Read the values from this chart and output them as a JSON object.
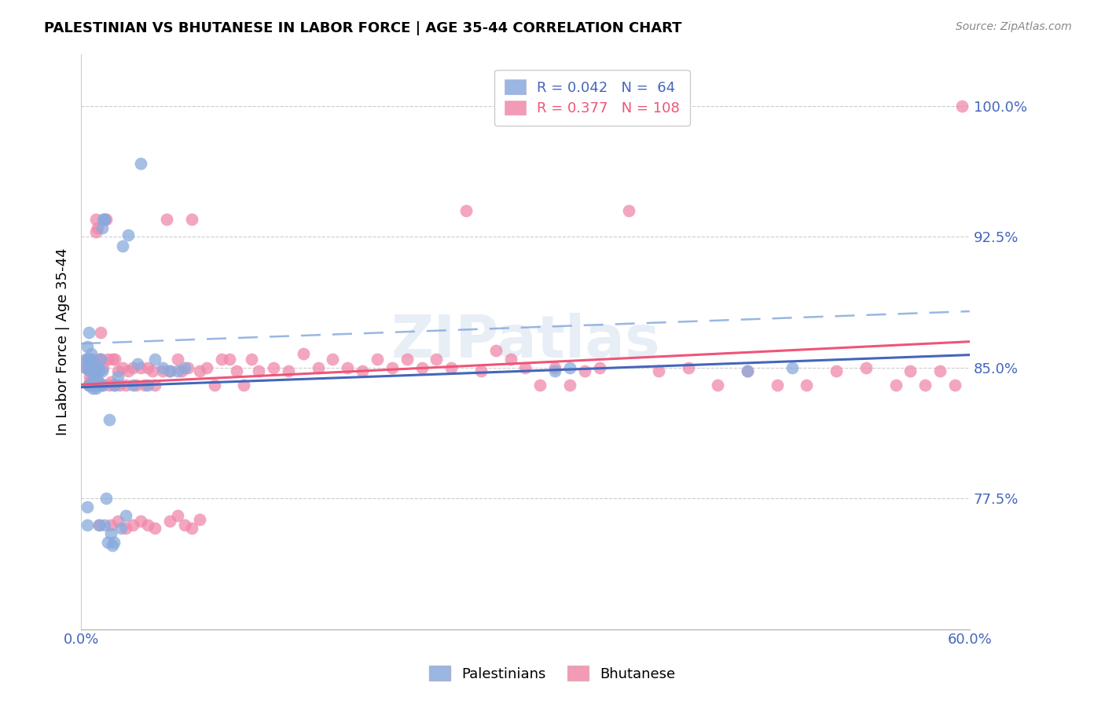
{
  "title": "PALESTINIAN VS BHUTANESE IN LABOR FORCE | AGE 35-44 CORRELATION CHART",
  "source": "Source: ZipAtlas.com",
  "ylabel": "In Labor Force | Age 35-44",
  "xlim": [
    0.0,
    0.6
  ],
  "ylim": [
    0.7,
    1.03
  ],
  "yticks": [
    0.775,
    0.85,
    0.925,
    1.0
  ],
  "yticklabels": [
    "77.5%",
    "85.0%",
    "92.5%",
    "100.0%"
  ],
  "palestinian_R": 0.042,
  "palestinian_N": 64,
  "bhutanese_R": 0.377,
  "bhutanese_N": 108,
  "palestinian_color": "#88aadd",
  "bhutanese_color": "#f088aa",
  "trend_blue_color": "#4466bb",
  "trend_pink_color": "#ee5577",
  "trend_dashed_color": "#88aadd",
  "watermark": "ZIPatlas",
  "grid_color": "#cccccc",
  "tick_label_color": "#4466bb",
  "palestinian_x": [
    0.003,
    0.003,
    0.004,
    0.004,
    0.004,
    0.005,
    0.005,
    0.005,
    0.005,
    0.006,
    0.006,
    0.006,
    0.007,
    0.007,
    0.007,
    0.008,
    0.008,
    0.008,
    0.009,
    0.009,
    0.009,
    0.01,
    0.01,
    0.01,
    0.01,
    0.011,
    0.011,
    0.011,
    0.012,
    0.012,
    0.012,
    0.013,
    0.013,
    0.014,
    0.014,
    0.015,
    0.015,
    0.016,
    0.016,
    0.017,
    0.018,
    0.019,
    0.02,
    0.021,
    0.022,
    0.023,
    0.025,
    0.027,
    0.028,
    0.03,
    0.032,
    0.035,
    0.038,
    0.04,
    0.045,
    0.05,
    0.055,
    0.06,
    0.065,
    0.07,
    0.32,
    0.33,
    0.45,
    0.48
  ],
  "palestinian_y": [
    0.85,
    0.855,
    0.76,
    0.77,
    0.862,
    0.84,
    0.855,
    0.87,
    0.85,
    0.84,
    0.848,
    0.855,
    0.84,
    0.85,
    0.858,
    0.842,
    0.85,
    0.838,
    0.845,
    0.852,
    0.842,
    0.838,
    0.845,
    0.84,
    0.848,
    0.842,
    0.85,
    0.84,
    0.848,
    0.76,
    0.842,
    0.855,
    0.84,
    0.848,
    0.93,
    0.935,
    0.84,
    0.935,
    0.76,
    0.775,
    0.75,
    0.82,
    0.755,
    0.748,
    0.75,
    0.84,
    0.845,
    0.758,
    0.92,
    0.765,
    0.926,
    0.84,
    0.852,
    0.967,
    0.84,
    0.855,
    0.85,
    0.848,
    0.848,
    0.85,
    0.848,
    0.85,
    0.848,
    0.85
  ],
  "bhutanese_x": [
    0.003,
    0.004,
    0.005,
    0.005,
    0.006,
    0.006,
    0.007,
    0.007,
    0.008,
    0.008,
    0.009,
    0.009,
    0.01,
    0.01,
    0.011,
    0.011,
    0.012,
    0.012,
    0.013,
    0.013,
    0.014,
    0.015,
    0.016,
    0.017,
    0.018,
    0.019,
    0.02,
    0.021,
    0.022,
    0.023,
    0.025,
    0.026,
    0.028,
    0.03,
    0.032,
    0.035,
    0.037,
    0.04,
    0.043,
    0.045,
    0.048,
    0.05,
    0.055,
    0.058,
    0.06,
    0.065,
    0.068,
    0.072,
    0.075,
    0.08,
    0.085,
    0.09,
    0.095,
    0.1,
    0.105,
    0.11,
    0.115,
    0.12,
    0.13,
    0.14,
    0.15,
    0.16,
    0.17,
    0.18,
    0.19,
    0.2,
    0.21,
    0.22,
    0.23,
    0.24,
    0.25,
    0.26,
    0.27,
    0.28,
    0.29,
    0.3,
    0.31,
    0.32,
    0.33,
    0.34,
    0.35,
    0.37,
    0.39,
    0.41,
    0.43,
    0.45,
    0.47,
    0.49,
    0.51,
    0.53,
    0.55,
    0.56,
    0.57,
    0.58,
    0.59,
    0.595,
    0.02,
    0.025,
    0.03,
    0.035,
    0.04,
    0.045,
    0.05,
    0.06,
    0.065,
    0.07,
    0.075,
    0.08
  ],
  "bhutanese_y": [
    0.85,
    0.855,
    0.84,
    0.855,
    0.845,
    0.842,
    0.85,
    0.848,
    0.84,
    0.855,
    0.84,
    0.848,
    0.935,
    0.928,
    0.93,
    0.848,
    0.855,
    0.76,
    0.87,
    0.855,
    0.84,
    0.85,
    0.935,
    0.935,
    0.855,
    0.84,
    0.842,
    0.855,
    0.84,
    0.855,
    0.848,
    0.84,
    0.85,
    0.84,
    0.848,
    0.85,
    0.84,
    0.85,
    0.84,
    0.85,
    0.848,
    0.84,
    0.848,
    0.935,
    0.848,
    0.855,
    0.848,
    0.85,
    0.935,
    0.848,
    0.85,
    0.84,
    0.855,
    0.855,
    0.848,
    0.84,
    0.855,
    0.848,
    0.85,
    0.848,
    0.858,
    0.85,
    0.855,
    0.85,
    0.848,
    0.855,
    0.85,
    0.855,
    0.85,
    0.855,
    0.85,
    0.94,
    0.848,
    0.86,
    0.855,
    0.85,
    0.84,
    0.85,
    0.84,
    0.848,
    0.85,
    0.94,
    0.848,
    0.85,
    0.84,
    0.848,
    0.84,
    0.84,
    0.848,
    0.85,
    0.84,
    0.848,
    0.84,
    0.848,
    0.84,
    1.0,
    0.76,
    0.762,
    0.758,
    0.76,
    0.762,
    0.76,
    0.758,
    0.762,
    0.765,
    0.76,
    0.758,
    0.763
  ]
}
